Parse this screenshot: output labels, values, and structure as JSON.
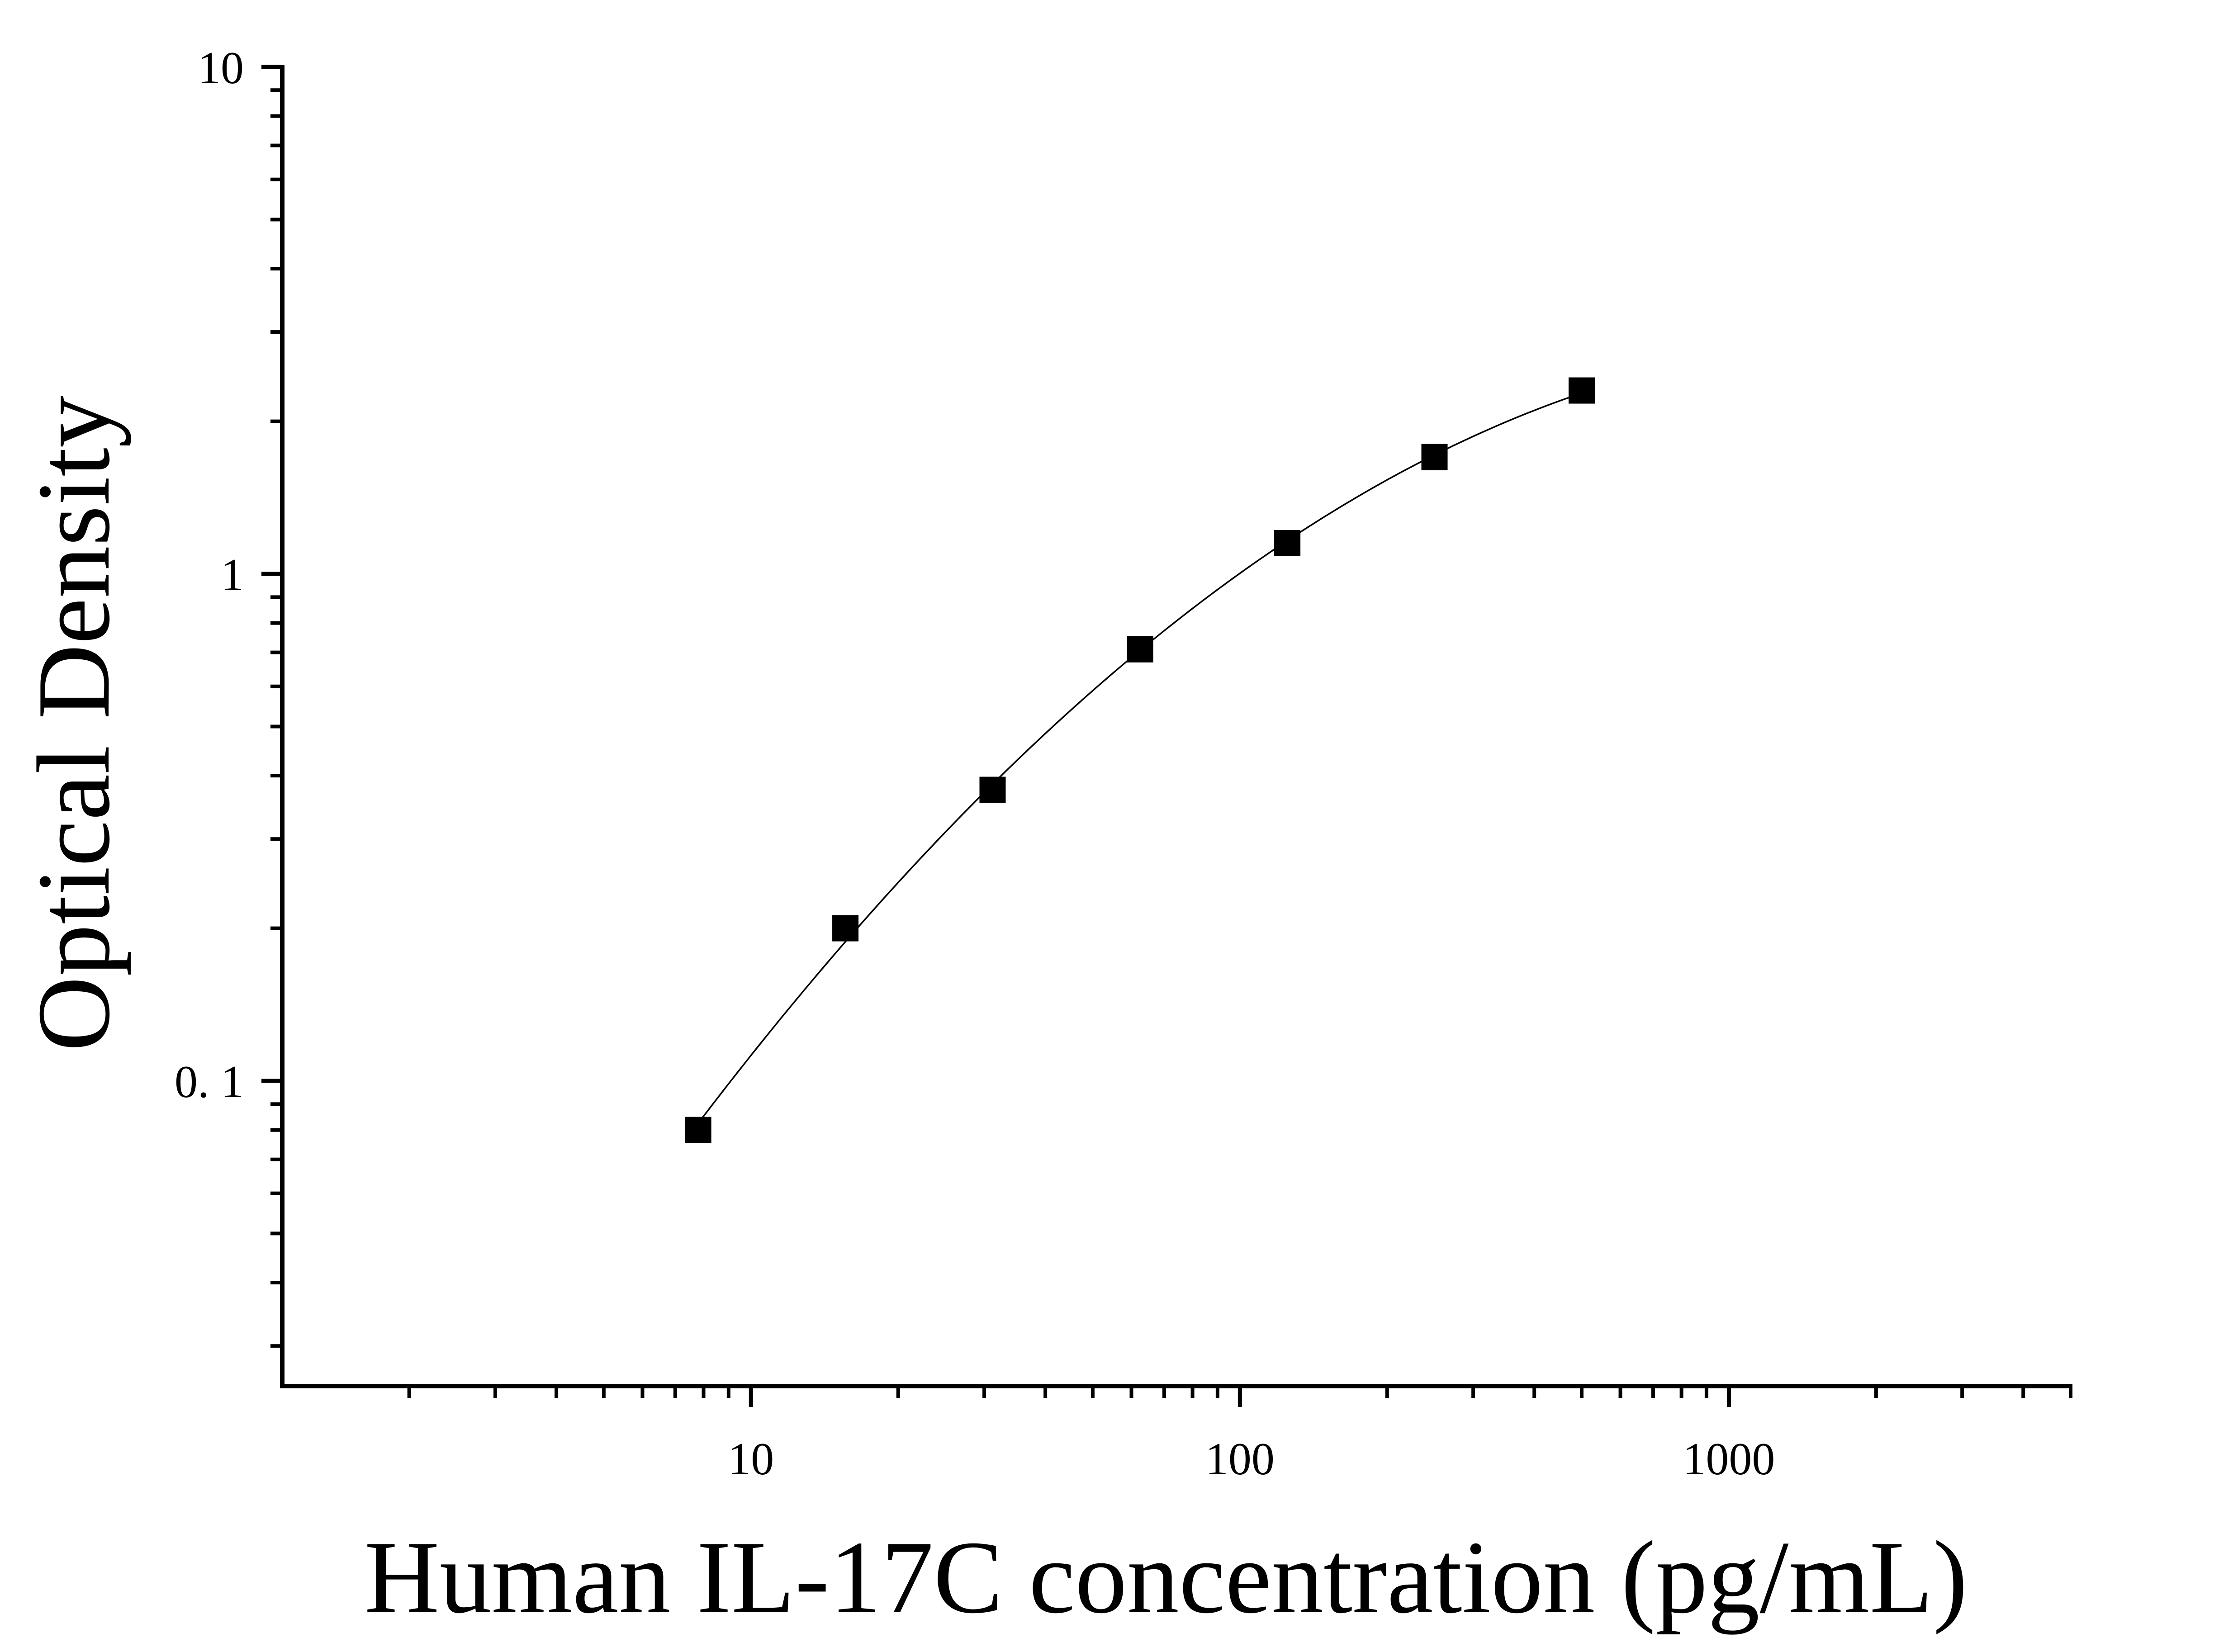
{
  "chart_data": {
    "type": "scatter",
    "title": "",
    "xlabel": "Human IL-17C concentration (pg/mL)",
    "ylabel": "Optical Density",
    "x_scale": "log",
    "y_scale": "log",
    "xlim": [
      1.1,
      5000
    ],
    "ylim": [
      0.025,
      10
    ],
    "x_ticks": [
      {
        "value": 10,
        "label": "10"
      },
      {
        "value": 100,
        "label": "100"
      },
      {
        "value": 1000,
        "label": "1000"
      }
    ],
    "y_ticks": [
      {
        "value": 0.1,
        "label": "0. 1"
      },
      {
        "value": 1,
        "label": "1"
      },
      {
        "value": 10,
        "label": "10"
      }
    ],
    "grid": false,
    "legend": "none",
    "series": [
      {
        "marker": "square",
        "color": "#000000",
        "fit_line": true,
        "points": [
          {
            "x": 7.8,
            "y": 0.08
          },
          {
            "x": 15.6,
            "y": 0.2
          },
          {
            "x": 31.2,
            "y": 0.375
          },
          {
            "x": 62.5,
            "y": 0.71
          },
          {
            "x": 125,
            "y": 1.15
          },
          {
            "x": 250,
            "y": 1.7
          },
          {
            "x": 500,
            "y": 2.3
          }
        ]
      }
    ]
  }
}
